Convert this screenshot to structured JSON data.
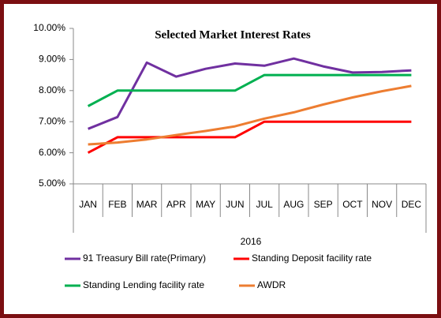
{
  "chart_data": {
    "type": "line",
    "title": "Selected Market Interest Rates",
    "x_label": "2016",
    "categories": [
      "JAN",
      "FEB",
      "MAR",
      "APR",
      "MAY",
      "JUN",
      "JUL",
      "AUG",
      "SEP",
      "OCT",
      "NOV",
      "DEC"
    ],
    "series": [
      {
        "name": "91 Treasury Bill rate(Primary)",
        "color": "#7030a0",
        "values": [
          6.77,
          7.15,
          8.9,
          8.45,
          8.7,
          8.87,
          8.8,
          9.03,
          8.78,
          8.58,
          8.6,
          8.65
        ]
      },
      {
        "name": "Standing Deposit facility rate",
        "color": "#ff0000",
        "values": [
          6.0,
          6.5,
          6.5,
          6.5,
          6.5,
          6.5,
          7.0,
          7.0,
          7.0,
          7.0,
          7.0,
          7.0
        ]
      },
      {
        "name": "Standing Lending facility rate",
        "color": "#00b050",
        "values": [
          7.5,
          8.0,
          8.0,
          8.0,
          8.0,
          8.0,
          8.5,
          8.5,
          8.5,
          8.5,
          8.5,
          8.5
        ]
      },
      {
        "name": "AWDR",
        "color": "#ed7d31",
        "values": [
          6.27,
          6.33,
          6.43,
          6.57,
          6.7,
          6.85,
          7.1,
          7.3,
          7.55,
          7.78,
          7.98,
          8.15
        ]
      }
    ],
    "ylim": [
      5,
      10
    ],
    "yticks": [
      {
        "value": 5,
        "label": "5.00%"
      },
      {
        "value": 6,
        "label": "6.00%"
      },
      {
        "value": 7,
        "label": "7.00%"
      },
      {
        "value": 8,
        "label": "8.00%"
      },
      {
        "value": 9,
        "label": "9.00%"
      },
      {
        "value": 10,
        "label": "10.00%"
      }
    ],
    "grid": false
  }
}
